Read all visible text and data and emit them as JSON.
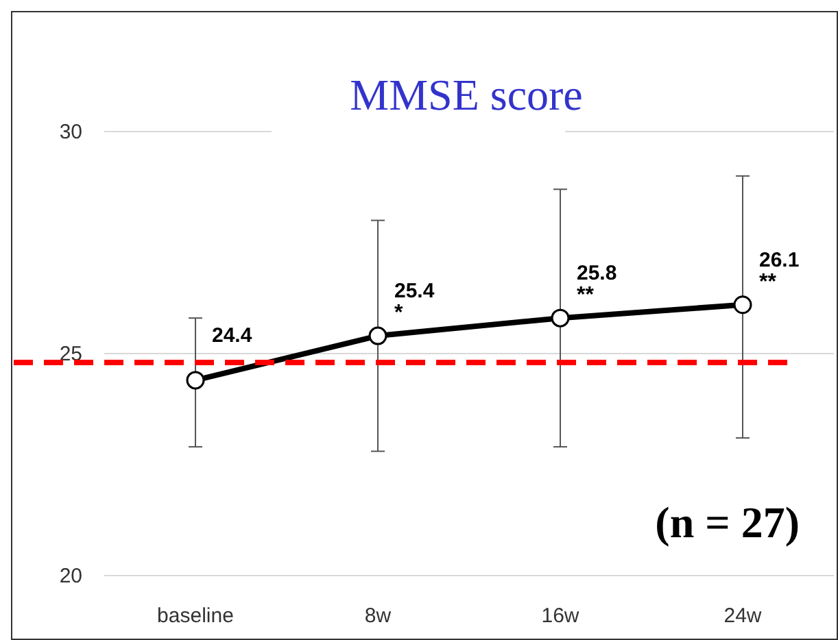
{
  "chart_data": {
    "type": "line",
    "title": "MMSE score",
    "categories": [
      "baseline",
      "8w",
      "16w",
      "24w"
    ],
    "series": [
      {
        "color": "#000000",
        "values": [
          24.4,
          25.4,
          25.8,
          26.1
        ],
        "errors": [
          [
            22.9,
            25.8
          ],
          [
            22.8,
            28.0
          ],
          [
            22.9,
            28.7
          ],
          [
            23.1,
            29.0
          ]
        ]
      }
    ],
    "ylim": [
      20,
      30
    ],
    "yticks": [
      20,
      25,
      30
    ],
    "grid": "y",
    "marker": "circle",
    "line_style": "solid",
    "data_labels": true,
    "ref_lines": [
      {
        "axis": "y",
        "value": 24.8,
        "color": "#ff0000",
        "line_style": "dashed"
      }
    ],
    "annotations": [
      {
        "text": "*",
        "x": "8w",
        "y": 25.4
      },
      {
        "text": "**",
        "x": "16w",
        "y": 25.8
      },
      {
        "text": "**",
        "x": "24w",
        "y": 26.1
      },
      "(n = 27)"
    ]
  }
}
